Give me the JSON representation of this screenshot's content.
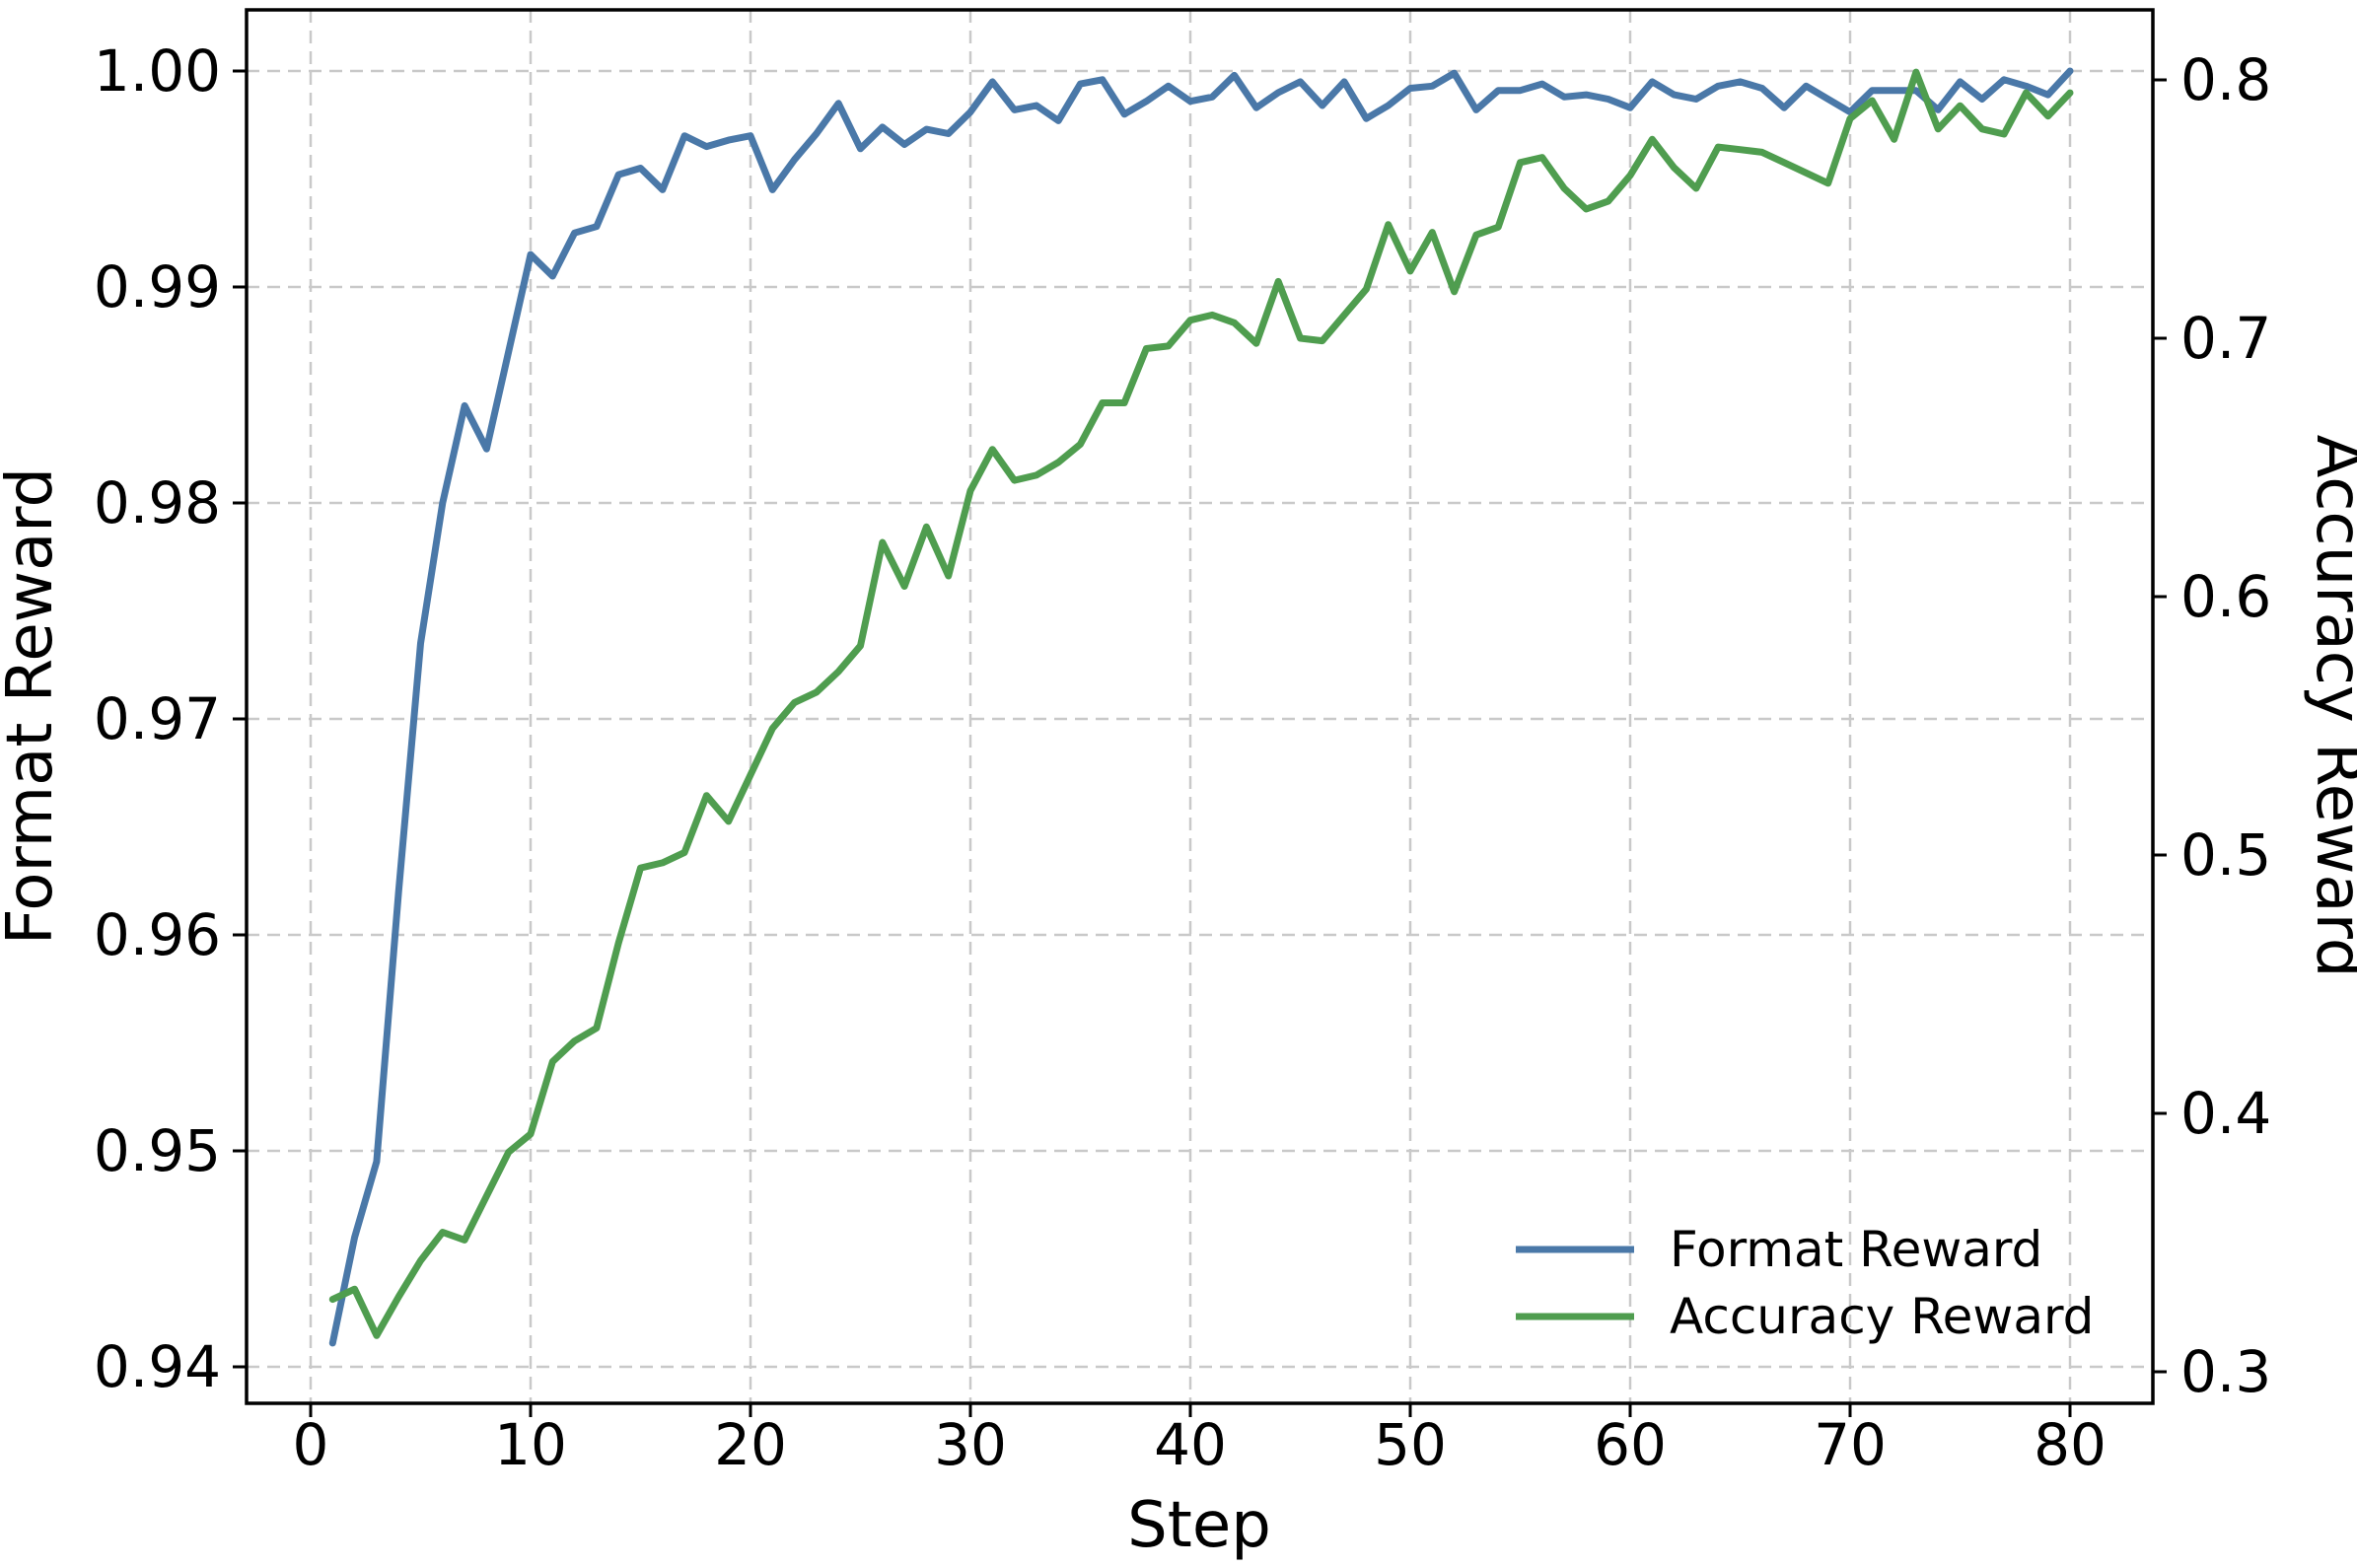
{
  "chart_data": {
    "type": "line",
    "title": "",
    "xlabel": "Step",
    "ylabel_left": "Format Reward",
    "ylabel_right": "Accuracy Reward",
    "grid": true,
    "grid_style": "dashed",
    "legend_position": "lower right",
    "legend": [
      "Format Reward",
      "Accuracy Reward"
    ],
    "x_ticks": {
      "values": [
        0,
        10,
        20,
        30,
        40,
        50,
        60,
        70,
        80
      ],
      "labels": [
        "0",
        "10",
        "20",
        "30",
        "40",
        "50",
        "60",
        "70",
        "80"
      ]
    },
    "left_ticks": {
      "values": [
        0.94,
        0.95,
        0.96,
        0.97,
        0.98,
        0.99,
        1.0
      ],
      "labels": [
        "0.94",
        "0.95",
        "0.96",
        "0.97",
        "0.98",
        "0.99",
        "1.00"
      ]
    },
    "right_ticks": {
      "values": [
        0.3,
        0.4,
        0.5,
        0.6,
        0.7,
        0.8
      ],
      "labels": [
        "0.3",
        "0.4",
        "0.5",
        "0.6",
        "0.7",
        "0.8"
      ]
    },
    "xlim": [
      -3,
      84
    ],
    "ylim_left": [
      0.9383,
      1.0028
    ],
    "ylim_right": [
      0.288,
      0.827
    ],
    "x": [
      1,
      2,
      3,
      4,
      5,
      6,
      7,
      8,
      9,
      10,
      11,
      12,
      13,
      14,
      15,
      16,
      17,
      18,
      19,
      20,
      21,
      22,
      23,
      24,
      25,
      26,
      27,
      28,
      29,
      30,
      31,
      32,
      33,
      34,
      35,
      36,
      37,
      38,
      39,
      40,
      41,
      42,
      43,
      44,
      45,
      46,
      47,
      48,
      49,
      50,
      51,
      52,
      53,
      54,
      55,
      56,
      57,
      58,
      59,
      60,
      61,
      62,
      63,
      64,
      65,
      66,
      67,
      68,
      69,
      70,
      71,
      72,
      73,
      74,
      75,
      76,
      77,
      78,
      79,
      80
    ],
    "series": [
      {
        "name": "Format Reward",
        "axis": "left",
        "color": "#4a78a8",
        "values": [
          0.9411,
          0.946,
          0.9495,
          0.962,
          0.9735,
          0.98,
          0.9845,
          0.9825,
          0.987,
          0.9915,
          0.9905,
          0.9925,
          0.9928,
          0.9952,
          0.9955,
          0.9945,
          0.997,
          0.9965,
          0.9968,
          0.997,
          0.9945,
          0.9959,
          0.9971,
          0.9985,
          0.9964,
          0.9974,
          0.9966,
          0.9973,
          0.9971,
          0.9981,
          0.9995,
          0.9982,
          0.9984,
          0.9977,
          0.9994,
          0.9996,
          0.998,
          0.9986,
          0.9993,
          0.9986,
          0.9988,
          0.9998,
          0.9983,
          0.999,
          0.9995,
          0.9984,
          0.9995,
          0.9978,
          0.9984,
          0.9992,
          0.9993,
          0.9999,
          0.9982,
          0.9991,
          0.9991,
          0.9994,
          0.9988,
          0.9989,
          0.9987,
          0.9983,
          0.9995,
          0.9989,
          0.9987,
          0.9993,
          0.9995,
          0.9992,
          0.9983,
          0.9993,
          0.9987,
          0.9981,
          0.9991,
          0.9991,
          0.9991,
          0.9982,
          0.9995,
          0.9987,
          0.9996,
          0.9993,
          0.9989,
          1.0
        ]
      },
      {
        "name": "Accuracy Reward",
        "axis": "right",
        "color": "#4f9d4f",
        "values": [
          0.328,
          0.332,
          0.314,
          0.329,
          0.343,
          0.354,
          0.351,
          0.368,
          0.385,
          0.392,
          0.42,
          0.428,
          0.433,
          0.466,
          0.495,
          0.497,
          0.501,
          0.523,
          0.513,
          0.531,
          0.549,
          0.559,
          0.563,
          0.571,
          0.581,
          0.621,
          0.604,
          0.627,
          0.608,
          0.641,
          0.657,
          0.645,
          0.647,
          0.652,
          0.659,
          0.675,
          0.675,
          0.696,
          0.697,
          0.707,
          0.709,
          0.706,
          0.698,
          0.722,
          0.7,
          0.699,
          0.709,
          0.719,
          0.744,
          0.726,
          0.741,
          0.718,
          0.74,
          0.743,
          0.768,
          0.77,
          0.758,
          0.75,
          0.753,
          0.763,
          0.777,
          0.766,
          0.758,
          0.774,
          0.773,
          0.772,
          0.768,
          0.764,
          0.76,
          0.785,
          0.792,
          0.777,
          0.803,
          0.781,
          0.79,
          0.781,
          0.779,
          0.795,
          0.786,
          0.795
        ]
      }
    ],
    "colors": {
      "background": "#ffffff",
      "spine": "#000000",
      "gridline": "#c9c9c9"
    }
  }
}
